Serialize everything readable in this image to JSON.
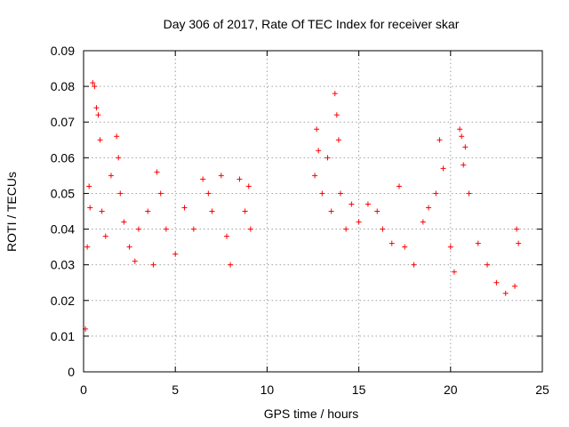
{
  "chart_data": {
    "type": "scatter",
    "title": "Day 306 of 2017, Rate Of TEC Index for receiver skar",
    "xlabel": "GPS time / hours",
    "ylabel": "ROTI / TECUs",
    "xlim": [
      0,
      25
    ],
    "ylim": [
      0,
      0.09
    ],
    "xticks": [
      0,
      5,
      10,
      15,
      20,
      25
    ],
    "xtick_labels": [
      "0",
      "5",
      "10",
      "15",
      "20",
      "25"
    ],
    "yticks": [
      0,
      0.01,
      0.02,
      0.03,
      0.04,
      0.05,
      0.06,
      0.07,
      0.08,
      0.09
    ],
    "ytick_labels": [
      "0",
      "0.01",
      "0.02",
      "0.03",
      "0.04",
      "0.05",
      "0.06",
      "0.07",
      "0.08",
      "0.09"
    ],
    "grid": true,
    "marker": "+",
    "marker_color": "#ff0000",
    "series": [
      {
        "points": [
          [
            0.1,
            0.012
          ],
          [
            0.2,
            0.035
          ],
          [
            0.3,
            0.052
          ],
          [
            0.35,
            0.046
          ],
          [
            0.5,
            0.081
          ],
          [
            0.6,
            0.08
          ],
          [
            0.7,
            0.074
          ],
          [
            0.8,
            0.072
          ],
          [
            0.9,
            0.065
          ],
          [
            1.0,
            0.045
          ],
          [
            1.2,
            0.038
          ],
          [
            1.5,
            0.055
          ],
          [
            1.8,
            0.066
          ],
          [
            1.9,
            0.06
          ],
          [
            2.0,
            0.05
          ],
          [
            2.2,
            0.042
          ],
          [
            2.5,
            0.035
          ],
          [
            2.8,
            0.031
          ],
          [
            3.0,
            0.04
          ],
          [
            3.5,
            0.045
          ],
          [
            3.8,
            0.03
          ],
          [
            4.0,
            0.056
          ],
          [
            4.2,
            0.05
          ],
          [
            4.5,
            0.04
          ],
          [
            5.0,
            0.033
          ],
          [
            5.5,
            0.046
          ],
          [
            6.0,
            0.04
          ],
          [
            6.5,
            0.054
          ],
          [
            6.8,
            0.05
          ],
          [
            7.0,
            0.045
          ],
          [
            7.5,
            0.055
          ],
          [
            7.8,
            0.038
          ],
          [
            8.0,
            0.03
          ],
          [
            8.5,
            0.054
          ],
          [
            8.8,
            0.045
          ],
          [
            9.0,
            0.052
          ],
          [
            9.1,
            0.04
          ],
          [
            12.6,
            0.055
          ],
          [
            12.7,
            0.068
          ],
          [
            12.8,
            0.062
          ],
          [
            13.0,
            0.05
          ],
          [
            13.3,
            0.06
          ],
          [
            13.5,
            0.045
          ],
          [
            13.7,
            0.078
          ],
          [
            13.8,
            0.072
          ],
          [
            13.9,
            0.065
          ],
          [
            14.0,
            0.05
          ],
          [
            14.3,
            0.04
          ],
          [
            14.6,
            0.047
          ],
          [
            15.0,
            0.042
          ],
          [
            15.5,
            0.047
          ],
          [
            16.0,
            0.045
          ],
          [
            16.3,
            0.04
          ],
          [
            16.8,
            0.036
          ],
          [
            17.2,
            0.052
          ],
          [
            17.5,
            0.035
          ],
          [
            18.0,
            0.03
          ],
          [
            18.5,
            0.042
          ],
          [
            18.8,
            0.046
          ],
          [
            19.2,
            0.05
          ],
          [
            19.4,
            0.065
          ],
          [
            19.6,
            0.057
          ],
          [
            20.0,
            0.035
          ],
          [
            20.2,
            0.028
          ],
          [
            20.5,
            0.068
          ],
          [
            20.6,
            0.066
          ],
          [
            20.7,
            0.058
          ],
          [
            20.8,
            0.063
          ],
          [
            21.0,
            0.05
          ],
          [
            21.5,
            0.036
          ],
          [
            22.0,
            0.03
          ],
          [
            22.5,
            0.025
          ],
          [
            23.0,
            0.022
          ],
          [
            23.5,
            0.024
          ],
          [
            23.6,
            0.04
          ],
          [
            23.7,
            0.036
          ]
        ]
      }
    ]
  }
}
